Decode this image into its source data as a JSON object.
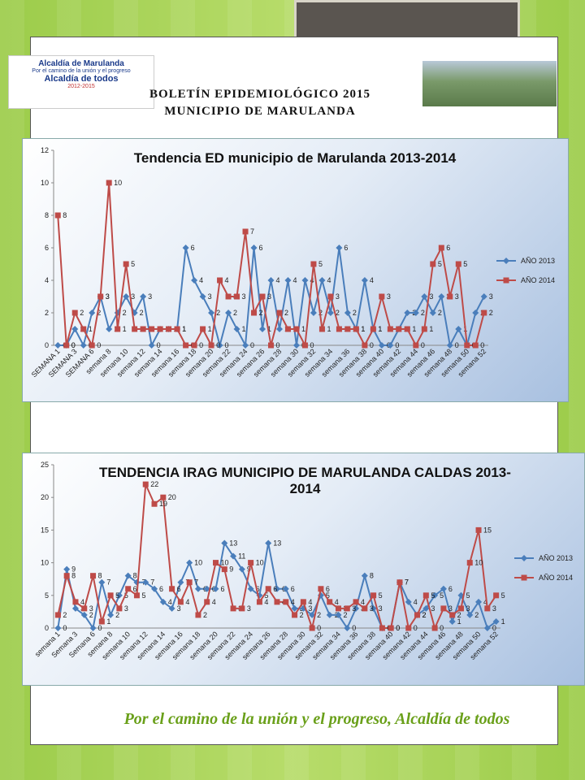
{
  "logo": {
    "title": "Alcaldía de Marulanda",
    "slogan": "Por el camino de la unión y el progreso",
    "name": "Alcaldía de todos",
    "years": "2012-2015"
  },
  "header": {
    "title": "BOLETÍN EPIDEMIOLÓGICO 2015",
    "subtitle": "MUNICIPIO DE MARULANDA"
  },
  "chart_data": [
    {
      "type": "line",
      "title": "Tendencia ED municipio de Marulanda 2013-2014",
      "categories": [
        "SEMANA 1",
        null,
        "SEMANA 3",
        null,
        "SEMANA 6",
        null,
        "semana 8",
        null,
        "semana 10",
        null,
        "semana 12",
        null,
        "semana 14",
        null,
        "semana 16",
        null,
        "semana 18",
        null,
        "semana 20",
        null,
        "semana 22",
        null,
        "semana 24",
        null,
        "semana 26",
        null,
        "semana 28",
        null,
        "semana 30",
        null,
        "semana 32",
        null,
        "semana 34",
        null,
        "semana 36",
        null,
        "semana 38",
        null,
        "semana 40",
        null,
        "semana 42",
        null,
        "semana 44",
        null,
        "semana 46",
        null,
        "semana 48",
        null,
        "semana 50",
        null,
        "semana 52"
      ],
      "series": [
        {
          "name": "AÑO 2013",
          "color": "#4a7ebb",
          "marker": "diamond",
          "values": [
            0,
            0,
            1,
            0,
            2,
            3,
            1,
            2,
            3,
            2,
            3,
            0,
            1,
            1,
            1,
            6,
            4,
            3,
            2,
            0,
            2,
            1,
            0,
            6,
            1,
            4,
            1,
            4,
            0,
            4,
            2,
            4,
            2,
            6,
            2,
            1,
            4,
            1,
            0,
            0,
            1,
            2,
            2,
            3,
            2,
            3,
            0,
            1,
            0,
            2,
            3
          ]
        },
        {
          "name": "AÑO 2014",
          "color": "#be4b48",
          "marker": "square",
          "values": [
            8,
            0,
            2,
            1,
            0,
            3,
            10,
            1,
            5,
            1,
            1,
            1,
            1,
            1,
            1,
            0,
            0,
            1,
            0,
            4,
            3,
            3,
            7,
            2,
            3,
            0,
            2,
            1,
            1,
            0,
            5,
            1,
            3,
            1,
            1,
            1,
            0,
            1,
            3,
            1,
            1,
            1,
            0,
            1,
            5,
            6,
            3,
            5,
            0,
            0,
            2
          ]
        }
      ],
      "ylim": [
        0,
        12
      ],
      "yticks": [
        0,
        2,
        4,
        6,
        8,
        10,
        12
      ],
      "grid": false,
      "legend": "right",
      "data_labels": true
    },
    {
      "type": "line",
      "title": "TENDENCIA IRAG MUNICIPIO DE MARULANDA CALDAS 2013-2014",
      "categories": [
        "semana 1",
        null,
        "Semana 3",
        null,
        "Semana 6",
        null,
        "semana 8",
        null,
        "semana 10",
        null,
        "semana 12",
        null,
        "semana 14",
        null,
        "semana 16",
        null,
        "semana 18",
        null,
        "semana 20",
        null,
        "semana 22",
        null,
        "semana 24",
        null,
        "semana 26",
        null,
        "semana 28",
        null,
        "semana 30",
        null,
        "semana 32",
        null,
        "semana 34",
        null,
        "semana 36",
        null,
        "semana 38",
        null,
        "semana 40",
        null,
        "semana 42",
        null,
        "semana 44",
        null,
        "semana 46",
        null,
        "semana 48",
        null,
        "semana 50",
        null,
        "semana 52"
      ],
      "series": [
        {
          "name": "AÑO 2013",
          "color": "#4a7ebb",
          "marker": "diamond",
          "values": [
            0,
            9,
            3,
            2,
            0,
            7,
            2,
            5,
            8,
            7,
            7,
            6,
            4,
            3,
            7,
            10,
            6,
            6,
            6,
            13,
            11,
            9,
            6,
            5,
            13,
            6,
            6,
            3,
            3,
            2,
            5,
            2,
            2,
            0,
            3,
            8,
            3,
            0,
            0,
            7,
            4,
            2,
            3,
            5,
            6,
            1,
            5,
            2,
            4,
            0,
            1
          ]
        },
        {
          "name": "AÑO 2014",
          "color": "#be4b48",
          "marker": "square",
          "values": [
            2,
            8,
            4,
            3,
            8,
            1,
            5,
            3,
            6,
            5,
            22,
            19,
            20,
            6,
            4,
            7,
            2,
            4,
            10,
            9,
            3,
            3,
            10,
            4,
            6,
            4,
            4,
            2,
            4,
            0,
            6,
            4,
            3,
            3,
            4,
            3,
            5,
            0,
            0,
            7,
            0,
            2,
            5,
            0,
            3,
            2,
            3,
            10,
            15,
            3,
            5
          ]
        }
      ],
      "ylim": [
        0,
        25
      ],
      "yticks": [
        0,
        5,
        10,
        15,
        20,
        25
      ],
      "grid": false,
      "legend": "right",
      "data_labels": true
    }
  ],
  "footer": {
    "text": "Por el camino de la unión y el progreso, Alcaldía de todos"
  }
}
